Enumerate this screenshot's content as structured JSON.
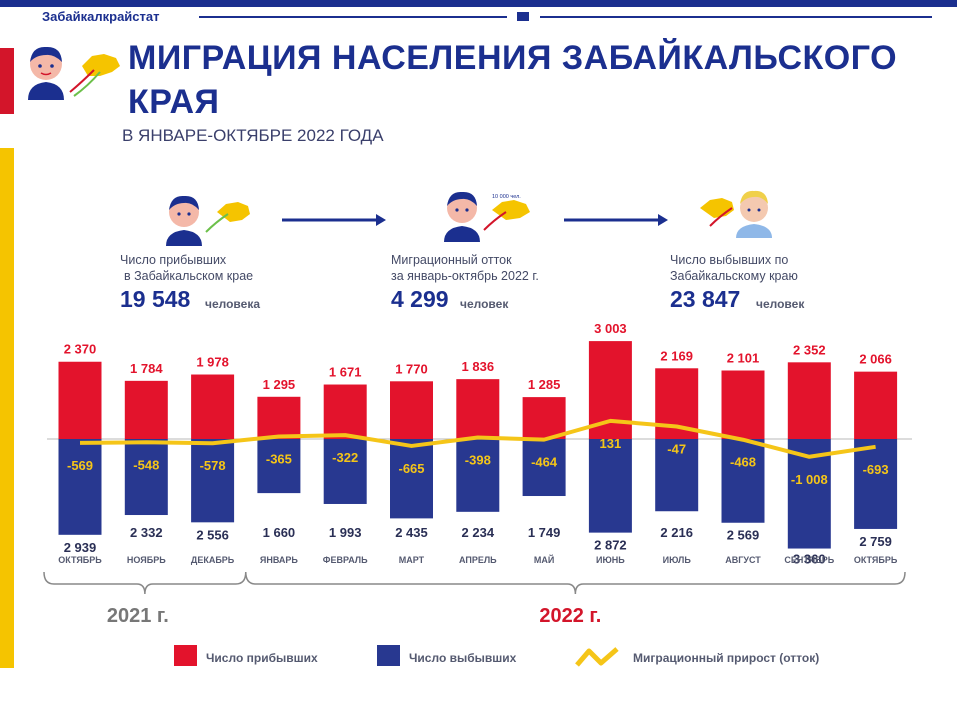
{
  "header": {
    "brand": "Забайкалкрайстат"
  },
  "title": "МИГРАЦИЯ НАСЕЛЕНИЯ ЗАБАЙКАЛЬСКОГО КРАЯ",
  "subtitle": "В ЯНВАРЕ-ОКТЯБРЕ 2022 ГОДА",
  "stats": {
    "arrived": {
      "label_line1": "Число прибывших",
      "label_line2": "в Забайкальском крае",
      "value": "19 548",
      "unit": "человека"
    },
    "outflow": {
      "label_line1": "Миграционный отток",
      "label_line2": "за январь-октябрь 2022 г.",
      "value": "4 299",
      "unit": "человек"
    },
    "departed": {
      "label_line1": "Число выбывших по",
      "label_line2": "Забайкальскому краю",
      "value": "23 847",
      "unit": "человек"
    }
  },
  "map_badge": "10 000 чел.",
  "colors": {
    "arrived": "#e3132c",
    "departed": "#283890",
    "net": "#f5c518",
    "brand": "#1b2f8f"
  },
  "chart_data": {
    "type": "bar",
    "categories": [
      "ОКТЯБРЬ",
      "НОЯБРЬ",
      "ДЕКАБРЬ",
      "ЯНВАРЬ",
      "ФЕВРАЛЬ",
      "МАРТ",
      "АПРЕЛЬ",
      "МАЙ",
      "ИЮНЬ",
      "ИЮЛЬ",
      "АВГУСТ",
      "СЕНТЯБРЬ",
      "ОКТЯБРЬ"
    ],
    "series": [
      {
        "name": "Число прибывших",
        "values": [
          2370,
          1784,
          1978,
          1295,
          1671,
          1770,
          1836,
          1285,
          3003,
          2169,
          2101,
          2352,
          2066
        ],
        "labels": [
          "2 370",
          "1 784",
          "1 978",
          "1 295",
          "1 671",
          "1 770",
          "1 836",
          "1 285",
          "3 003",
          "2 169",
          "2 101",
          "2 352",
          "2 066"
        ]
      },
      {
        "name": "Число выбывших",
        "values": [
          2939,
          2332,
          2556,
          1660,
          1993,
          2435,
          2234,
          1749,
          2872,
          2216,
          2569,
          3360,
          2759
        ],
        "labels": [
          "2 939",
          "2 332",
          "2 556",
          "1 660",
          "1 993",
          "2 435",
          "2 234",
          "1 749",
          "2 872",
          "2 216",
          "2 569",
          "3 360",
          "2 759"
        ]
      },
      {
        "name": "Миграционный прирост (отток)",
        "values": [
          -569,
          -548,
          -578,
          -365,
          -322,
          -665,
          -398,
          -464,
          131,
          -47,
          -468,
          -1008,
          -693
        ],
        "labels": [
          "-569",
          "-548",
          "-578",
          "-365",
          "-322",
          "-665",
          "-398",
          "-464",
          "131",
          "-47",
          "-468",
          "-1 008",
          "-693"
        ]
      }
    ],
    "year_groups": [
      {
        "label": "2021 г.",
        "count": 3,
        "color": "#777777"
      },
      {
        "label": "2022 г.",
        "count": 10,
        "color": "#d3152a"
      }
    ],
    "legend_position": "bottom"
  }
}
